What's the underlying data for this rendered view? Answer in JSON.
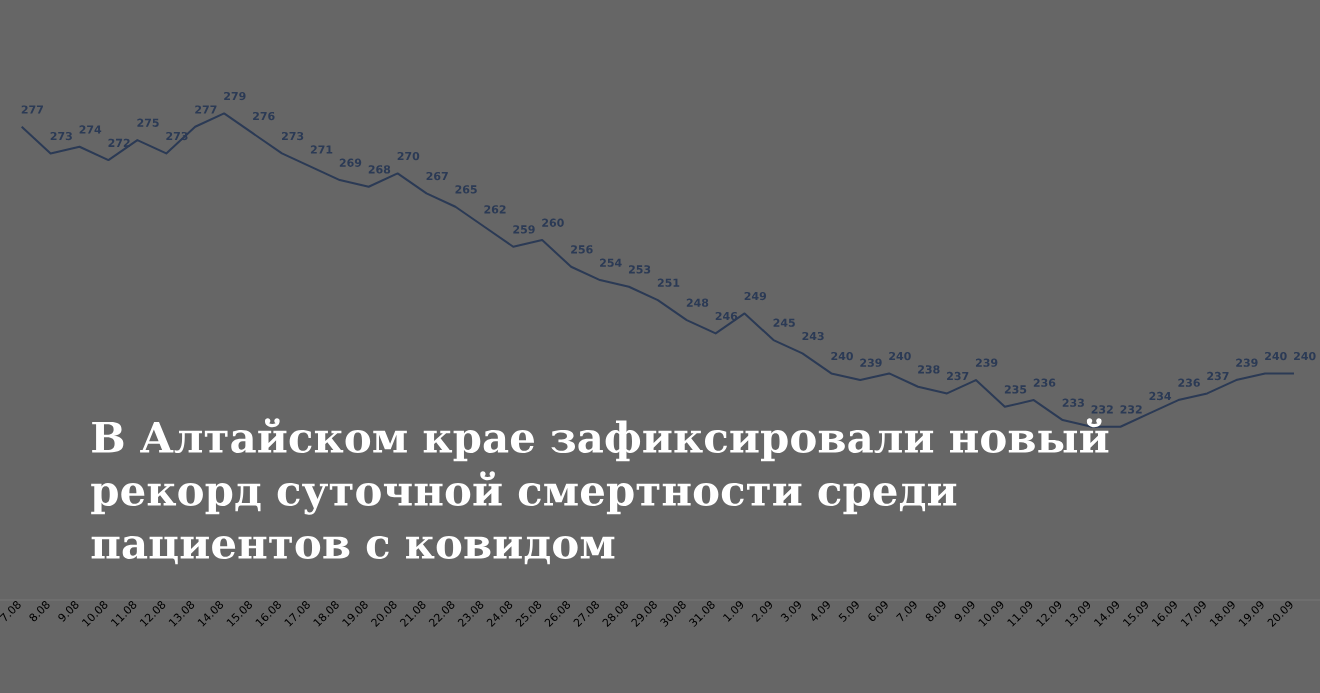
{
  "chart_data": {
    "type": "line",
    "title": "В Алтайском крае зафиксировали новый рекорд суточной смертности среди пациентов с ковидом",
    "categories": [
      "7.08",
      "8.08",
      "9.08",
      "10.08",
      "11.08",
      "12.08",
      "13.08",
      "14.08",
      "15.08",
      "16.08",
      "17.08",
      "18.08",
      "19.08",
      "20.08",
      "21.08",
      "22.08",
      "23.08",
      "24.08",
      "25.08",
      "26.08",
      "27.08",
      "28.08",
      "29.08",
      "30.08",
      "31.08",
      "1.09",
      "2.09",
      "3.09",
      "4.09",
      "5.09",
      "6.09",
      "7.09",
      "8.09",
      "9.09",
      "10.09",
      "11.09",
      "12.09",
      "13.09",
      "14.09",
      "15.09",
      "16.09",
      "17.09",
      "18.09",
      "19.09",
      "20.09"
    ],
    "values": [
      277,
      273,
      274,
      272,
      275,
      273,
      277,
      279,
      276,
      273,
      271,
      269,
      268,
      270,
      267,
      265,
      262,
      259,
      260,
      256,
      254,
      253,
      251,
      248,
      246,
      249,
      245,
      243,
      240,
      239,
      240,
      238,
      237,
      239,
      235,
      236,
      233,
      232,
      232,
      234,
      236,
      237,
      239,
      240,
      240
    ],
    "color": "#2b3a55",
    "tick_labels": "x",
    "data_labels": true,
    "line_style": "solid"
  }
}
